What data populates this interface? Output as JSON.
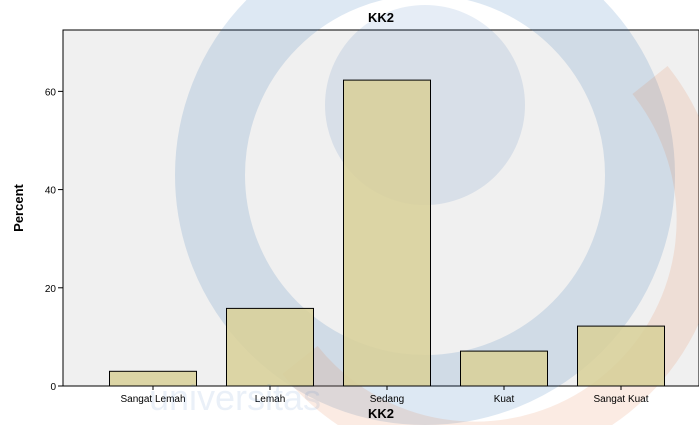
{
  "chart_data": {
    "type": "bar",
    "title": "KK2",
    "xlabel": "KK2",
    "ylabel": "Percent",
    "categories": [
      "Sangat Lemah",
      "Lemah",
      "Sedang",
      "Kuat",
      "Sangat Kuat"
    ],
    "values": [
      3.0,
      15.8,
      62.3,
      7.1,
      12.2
    ],
    "ylim": [
      0,
      72.5
    ],
    "yticks": [
      "0",
      "20",
      "40",
      "60"
    ],
    "grid": false,
    "legend": "none",
    "colors": {
      "bar_fill": "#d8d09a",
      "bar_stroke": "#000000",
      "plot_background": "#f0f0f0",
      "axis": "#000000"
    }
  }
}
